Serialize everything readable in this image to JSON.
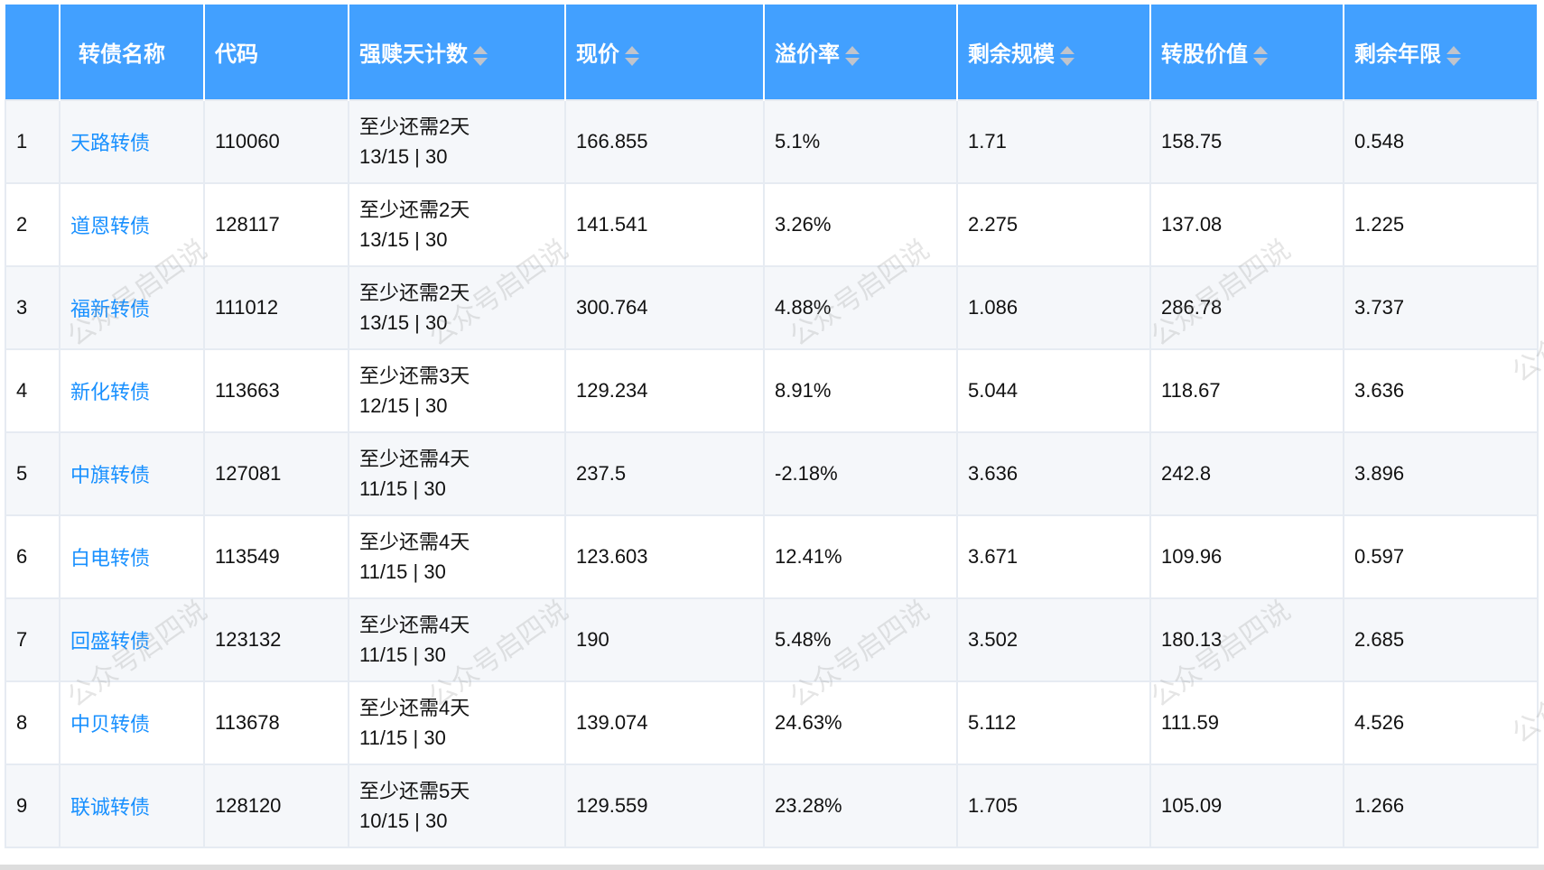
{
  "table": {
    "headers": [
      "",
      "转债名称",
      "代码",
      "强赎天计数",
      "现价",
      "溢价率",
      "剩余规模",
      "转股价值",
      "剩余年限"
    ],
    "rows": [
      {
        "idx": "1",
        "name": "天路转债",
        "code": "110060",
        "days": "至少还需2天",
        "count": "13/15 | 30",
        "price": "166.855",
        "premium": "5.1%",
        "size": "1.71",
        "conv": "158.75",
        "years": "0.548"
      },
      {
        "idx": "2",
        "name": "道恩转债",
        "code": "128117",
        "days": "至少还需2天",
        "count": "13/15 | 30",
        "price": "141.541",
        "premium": "3.26%",
        "size": "2.275",
        "conv": "137.08",
        "years": "1.225"
      },
      {
        "idx": "3",
        "name": "福新转债",
        "code": "111012",
        "days": "至少还需2天",
        "count": "13/15 | 30",
        "price": "300.764",
        "premium": "4.88%",
        "size": "1.086",
        "conv": "286.78",
        "years": "3.737"
      },
      {
        "idx": "4",
        "name": "新化转债",
        "code": "113663",
        "days": "至少还需3天",
        "count": "12/15 | 30",
        "price": "129.234",
        "premium": "8.91%",
        "size": "5.044",
        "conv": "118.67",
        "years": "3.636"
      },
      {
        "idx": "5",
        "name": "中旗转债",
        "code": "127081",
        "days": "至少还需4天",
        "count": "11/15 | 30",
        "price": "237.5",
        "premium": "-2.18%",
        "size": "3.636",
        "conv": "242.8",
        "years": "3.896"
      },
      {
        "idx": "6",
        "name": "白电转债",
        "code": "113549",
        "days": "至少还需4天",
        "count": "11/15 | 30",
        "price": "123.603",
        "premium": "12.41%",
        "size": "3.671",
        "conv": "109.96",
        "years": "0.597"
      },
      {
        "idx": "7",
        "name": "回盛转债",
        "code": "123132",
        "days": "至少还需4天",
        "count": "11/15 | 30",
        "price": "190",
        "premium": "5.48%",
        "size": "3.502",
        "conv": "180.13",
        "years": "2.685"
      },
      {
        "idx": "8",
        "name": "中贝转债",
        "code": "113678",
        "days": "至少还需4天",
        "count": "11/15 | 30",
        "price": "139.074",
        "premium": "24.63%",
        "size": "5.112",
        "conv": "111.59",
        "years": "4.526"
      },
      {
        "idx": "9",
        "name": "联诚转债",
        "code": "128120",
        "days": "至少还需5天",
        "count": "10/15 | 30",
        "price": "129.559",
        "premium": "23.28%",
        "size": "1.705",
        "conv": "105.09",
        "years": "1.266"
      }
    ]
  },
  "watermark": "公众号启四说",
  "colors": {
    "header": "#42a0ff",
    "link": "#1890ff"
  }
}
